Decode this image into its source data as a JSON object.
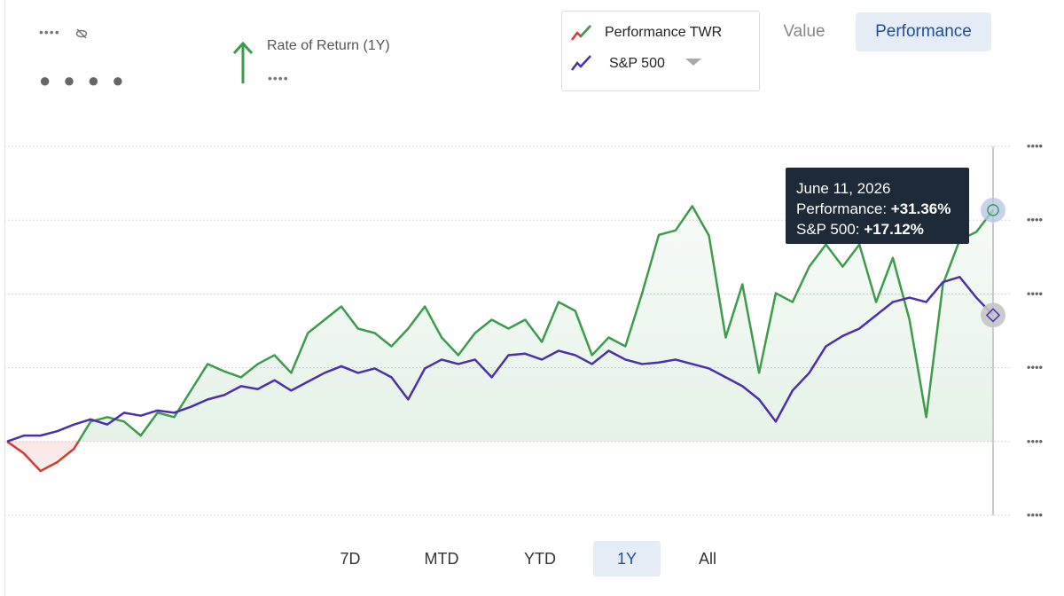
{
  "header": {
    "masked_small": "••••",
    "masked_large": "● ● ● ●",
    "return_label": "Rate of Return (1Y)",
    "return_value": "••••"
  },
  "view_toggle": [
    "Value",
    "Performance"
  ],
  "ranges": [
    "7D",
    "MTD",
    "YTD",
    "1Y",
    "All"
  ],
  "tooltip": {
    "date": "June 11, 2026",
    "rows": [
      {
        "label": "Performance:",
        "value": "+31.36%"
      },
      {
        "label": "S&P 500:",
        "value": "+17.12%"
      }
    ]
  },
  "chart_data": {
    "type": "line",
    "categories": [
      null,
      null,
      null,
      null,
      null,
      null,
      null,
      null,
      null,
      null,
      null,
      null,
      null,
      null,
      null,
      null,
      null,
      null,
      null,
      null,
      null,
      null,
      null,
      null,
      null,
      null,
      null,
      null,
      null,
      null,
      null,
      null,
      null,
      null,
      null,
      null,
      null,
      null,
      null,
      null,
      null,
      null,
      null,
      null,
      null,
      null,
      null,
      null,
      null,
      null,
      null,
      null,
      null,
      null,
      null,
      null,
      null,
      null,
      null,
      null
    ],
    "series": [
      {
        "name": "Performance TWR",
        "color": "#3d9b4c",
        "negative_color": "#d23a32",
        "values": [
          0,
          -1.6,
          -4,
          -2.8,
          -1,
          2.7,
          3.3,
          2.7,
          0.8,
          3.9,
          3.3,
          6.9,
          10.5,
          9.5,
          8.7,
          10.5,
          11.7,
          9.3,
          14.7,
          16.5,
          18.3,
          15.3,
          14.7,
          12.9,
          15.3,
          18.3,
          14.1,
          11.7,
          14.7,
          16.5,
          15.3,
          16.5,
          13.5,
          18.9,
          17.7,
          11.7,
          14.1,
          12.9,
          20.1,
          28,
          28.6,
          31.9,
          27.9,
          14.1,
          21.3,
          9.3,
          20.1,
          18.9,
          23.7,
          26.7,
          23.7,
          26.7,
          18.9,
          24.9,
          16.5,
          3.3,
          21.3,
          27.3,
          28.4,
          31.36
        ]
      },
      {
        "name": "S&P 500",
        "color": "#4b2fb0",
        "values": [
          0,
          0.8,
          0.8,
          1.4,
          2.3,
          3,
          2.3,
          3.9,
          3.5,
          4.2,
          3.9,
          4.7,
          5.7,
          6.3,
          7.5,
          7.1,
          8.3,
          6.9,
          8.1,
          9.3,
          10.2,
          9.3,
          9.9,
          8.7,
          5.7,
          9.9,
          11.1,
          10.5,
          11.1,
          8.7,
          11.7,
          11.9,
          11.1,
          12.3,
          11.7,
          10.5,
          12.3,
          11.1,
          10.5,
          10.7,
          11.1,
          10.5,
          9.9,
          8.7,
          7.5,
          5.7,
          2.7,
          6.9,
          9.3,
          12.9,
          14.3,
          15.3,
          17.1,
          18.9,
          19.5,
          18.9,
          21.6,
          22.3,
          19.5,
          17.12
        ]
      }
    ],
    "ylim": [
      -10,
      40
    ],
    "yticks": [
      {
        "value": -10,
        "label": "••••"
      },
      {
        "value": 0,
        "label": "••••"
      },
      {
        "value": 10,
        "label": "••••"
      },
      {
        "value": 20,
        "label": "••••"
      },
      {
        "value": 30,
        "label": "••••"
      },
      {
        "value": 40,
        "label": "••••"
      }
    ],
    "grid": true
  }
}
